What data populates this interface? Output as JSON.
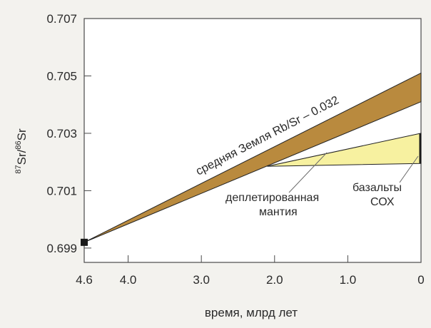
{
  "chart_data": {
    "type": "area",
    "xlabel": "время, млрд лет",
    "ylabel_mass_top": "87",
    "ylabel_element_top": "Sr/",
    "ylabel_mass_bottom": "86",
    "ylabel_element_bottom": "Sr",
    "x_reversed": true,
    "xlim": [
      4.6,
      0
    ],
    "ylim": [
      0.6985,
      0.707
    ],
    "x_ticks": [
      {
        "value": 4.6,
        "label": "4.6"
      },
      {
        "value": 4.0,
        "label": "4.0"
      },
      {
        "value": 3.0,
        "label": "3.0"
      },
      {
        "value": 2.0,
        "label": "2.0"
      },
      {
        "value": 1.0,
        "label": "1.0"
      },
      {
        "value": 0,
        "label": "0"
      }
    ],
    "y_ticks": [
      {
        "value": 0.699,
        "label": "0.699"
      },
      {
        "value": 0.701,
        "label": "0.701"
      },
      {
        "value": 0.703,
        "label": "0.703"
      },
      {
        "value": 0.705,
        "label": "0.705"
      },
      {
        "value": 0.707,
        "label": "0.707"
      }
    ],
    "grid": false,
    "series": [
      {
        "name": "средняя Земля Rb/Sr – 0.032",
        "color": "#b98a3e",
        "polygon": [
          [
            4.6,
            0.6992
          ],
          [
            0,
            0.7051
          ],
          [
            0,
            0.7041
          ]
        ]
      },
      {
        "name": "деплетированная мантия",
        "color": "#f7f1a0",
        "polygon": [
          [
            2.1,
            0.70185
          ],
          [
            0,
            0.703
          ],
          [
            0,
            0.70195
          ]
        ]
      }
    ],
    "start_marker": {
      "x": 4.6,
      "y": 0.6992
    },
    "present_marker": {
      "x": 0,
      "y_from": 0.70195,
      "y_to": 0.703
    },
    "annotations": {
      "earth_band": "средняя Земля Rb/Sr – 0.032",
      "mantle_line1": "деплетированная",
      "mantle_line2": "мантия",
      "morb_line1": "базальты",
      "morb_line2": "СОХ"
    },
    "colors": {
      "background": "#f3f2ee",
      "plot_bg": "#ffffff",
      "earth_fill": "#b98a3e",
      "mantle_fill": "#f7f1a0",
      "axis": "#4a4a4a",
      "marker": "#1a1a1a"
    }
  }
}
